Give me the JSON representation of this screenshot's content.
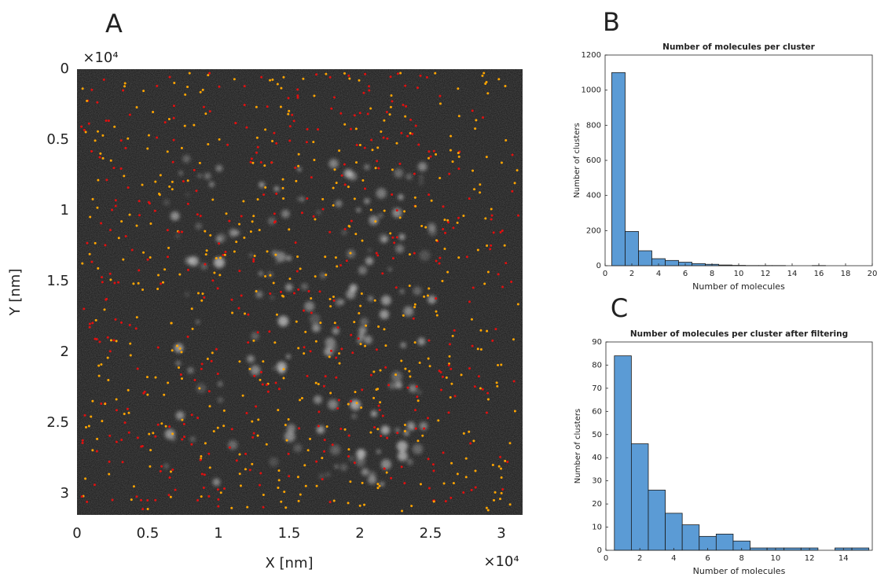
{
  "chart_data": [
    {
      "type": "image",
      "panel_label": "A",
      "x_label": "X [nm]",
      "y_label": "Y [nm]",
      "x_exponent_label": "×10⁴",
      "y_exponent_label": "×10⁴",
      "xlim": [
        0,
        31500
      ],
      "ylim": [
        0,
        31500
      ],
      "y_reversed": true,
      "xticks": [
        0,
        {
          "value": 5000,
          "label": "0.5"
        },
        {
          "value": 10000,
          "label": "1"
        },
        {
          "value": 15000,
          "label": "1.5"
        },
        {
          "value": 20000,
          "label": "2"
        },
        {
          "value": 25000,
          "label": "2.5"
        },
        {
          "value": 30000,
          "label": "3"
        }
      ],
      "yticks": [
        0,
        {
          "value": 5000,
          "label": "0.5"
        },
        {
          "value": 10000,
          "label": "1"
        },
        {
          "value": 15000,
          "label": "1.5"
        },
        {
          "value": 20000,
          "label": "2"
        },
        {
          "value": 25000,
          "label": "2.5"
        },
        {
          "value": 30000,
          "label": "3"
        }
      ]
    },
    {
      "type": "histogram",
      "panel_label": "B",
      "title": "Number of molecules per cluster",
      "x_label": "Number of molecules",
      "y_label": "Number of clusters",
      "color": "#5b9bd5",
      "bins": [
        0.5,
        1.5,
        2.5,
        3.5,
        4.5,
        5.5,
        6.5,
        7.5,
        8.5,
        9.5,
        10.5,
        11.5,
        12.5,
        13.5,
        14.5,
        15.5,
        16.5,
        17.5,
        18.5,
        19.5
      ],
      "counts": [
        1100,
        195,
        85,
        40,
        30,
        20,
        12,
        8,
        4,
        2,
        1,
        1,
        1,
        0,
        0,
        1,
        0,
        0,
        0
      ],
      "xlim": [
        0,
        20
      ],
      "ylim": [
        0,
        1200
      ],
      "xticks": [
        0,
        2,
        4,
        6,
        8,
        10,
        12,
        14,
        16,
        18,
        20
      ],
      "yticks": [
        0,
        200,
        400,
        600,
        800,
        1000,
        1200
      ]
    },
    {
      "type": "histogram",
      "panel_label": "C",
      "title": "Number of molecules per cluster after filtering",
      "x_label": "Number of molecules",
      "y_label": "Number of clusters",
      "color": "#5b9bd5",
      "bins": [
        0.5,
        1.5,
        2.5,
        3.5,
        4.5,
        5.5,
        6.5,
        7.5,
        8.5,
        9.5,
        10.5,
        11.5,
        12.5,
        13.5,
        14.5,
        15.5
      ],
      "counts": [
        84,
        46,
        26,
        16,
        11,
        6,
        7,
        4,
        1,
        1,
        1,
        1,
        0,
        1,
        1
      ],
      "xlim": [
        0,
        15.7
      ],
      "ylim": [
        0,
        90
      ],
      "xticks": [
        0,
        2,
        4,
        6,
        8,
        10,
        12,
        14
      ],
      "yticks": [
        0,
        10,
        20,
        30,
        40,
        50,
        60,
        70,
        80,
        90
      ]
    }
  ]
}
